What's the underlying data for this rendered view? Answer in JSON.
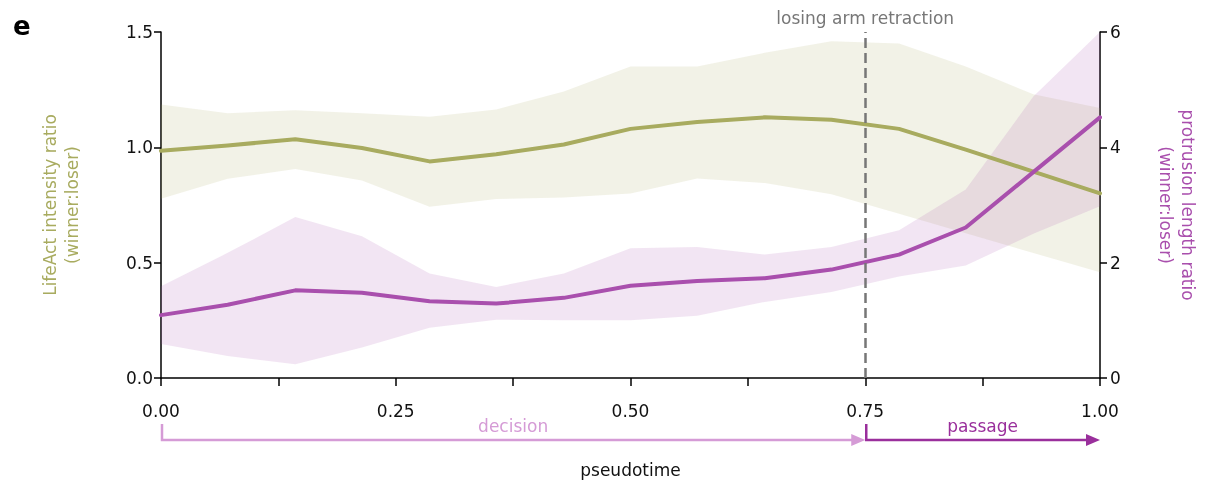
{
  "chart_data": {
    "type": "line",
    "title": "e",
    "xlabel": "pseudotime",
    "ylabel": "LifeAct intensity ratio\n(winner:loser)",
    "y2label": "protrusion length ratio\n(winner:loser)",
    "x": [
      0,
      0.071,
      0.143,
      0.214,
      0.286,
      0.357,
      0.429,
      0.5,
      0.571,
      0.643,
      0.714,
      0.786,
      0.857,
      0.929,
      1.0
    ],
    "series": [
      {
        "color": "#a8ab5f",
        "values": [
          0.985,
          1.008,
          1.035,
          0.997,
          0.939,
          0.97,
          1.012,
          1.08,
          1.11,
          1.13,
          1.12,
          1.08,
          0.99,
          0.895,
          0.8
        ],
        "lower": [
          0.777,
          0.864,
          0.906,
          0.856,
          0.742,
          0.776,
          0.782,
          0.8,
          0.865,
          0.845,
          0.797,
          0.712,
          0.627,
          0.542,
          0.458
        ],
        "upper": [
          1.186,
          1.148,
          1.161,
          1.148,
          1.133,
          1.164,
          1.242,
          1.35,
          1.35,
          1.41,
          1.46,
          1.45,
          1.35,
          1.23,
          1.17
        ]
      },
      {
        "color": "#a94fad",
        "axis": "y2",
        "values": [
          1.09,
          1.27,
          1.52,
          1.48,
          1.33,
          1.29,
          1.39,
          1.6,
          1.68,
          1.73,
          1.88,
          2.14,
          2.61,
          3.57,
          4.52
        ],
        "lower": [
          0.59,
          0.38,
          0.24,
          0.53,
          0.87,
          1.01,
          1.0,
          1.0,
          1.08,
          1.32,
          1.49,
          1.76,
          1.95,
          2.5,
          2.98
        ],
        "upper": [
          1.59,
          2.17,
          2.79,
          2.46,
          1.81,
          1.58,
          1.81,
          2.25,
          2.27,
          2.14,
          2.27,
          2.56,
          3.27,
          4.88,
          6.0
        ]
      }
    ],
    "xlim": [
      0,
      1
    ],
    "xticks": [
      {
        "value": 0,
        "label": "0.00"
      },
      {
        "value": 0.125,
        "label": null
      },
      {
        "value": 0.25,
        "label": "0.25"
      },
      {
        "value": 0.375,
        "label": null
      },
      {
        "value": 0.5,
        "label": "0.50"
      },
      {
        "value": 0.625,
        "label": null
      },
      {
        "value": 0.75,
        "label": "0.75"
      },
      {
        "value": 0.875,
        "label": null
      },
      {
        "value": 1,
        "label": "1.00"
      }
    ],
    "ylim": [
      0,
      1.5
    ],
    "yticks": [
      {
        "value": 0,
        "label": "0.0"
      },
      {
        "value": 0.5,
        "label": "0.5"
      },
      {
        "value": 1,
        "label": "1.0"
      },
      {
        "value": 1.5,
        "label": "1.5"
      }
    ],
    "y2lim": [
      0,
      6
    ],
    "y2ticks": [
      0,
      2,
      4,
      6
    ],
    "ref_lines": [
      {
        "axis": "x",
        "value": 0.75,
        "label": "losing arm retraction",
        "color": "#777777",
        "line_style": "dashed"
      }
    ],
    "annotations": [
      "decision",
      "passage"
    ],
    "grid": false,
    "marker": "none",
    "line_style": "solid"
  }
}
